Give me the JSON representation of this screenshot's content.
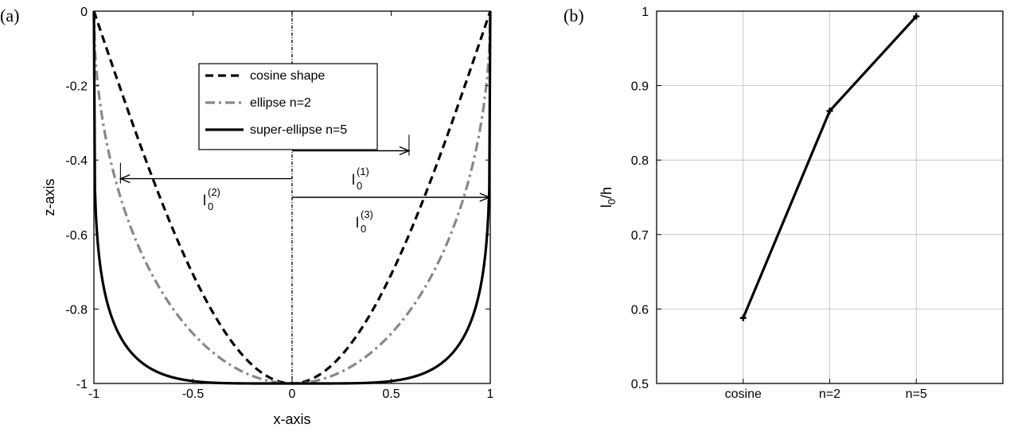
{
  "panels": {
    "a_label": "(a)",
    "b_label": "(b)"
  },
  "chart_data": [
    {
      "type": "line",
      "panel": "(a)",
      "xlabel": "x-axis",
      "ylabel": "z-axis",
      "xlim": [
        -1,
        1
      ],
      "ylim": [
        -1,
        0
      ],
      "xticks": [
        -1,
        -0.5,
        0,
        0.5,
        1
      ],
      "xtick_labels": [
        "-1",
        "-0.5",
        "0",
        "0.5",
        "1"
      ],
      "yticks": [
        -1,
        -0.8,
        -0.6,
        -0.4,
        -0.2,
        0
      ],
      "ytick_labels": [
        "-1",
        "-0.8",
        "-0.6",
        "-0.4",
        "-0.2",
        "0"
      ],
      "grid": false,
      "legend_position": "top-center",
      "series": [
        {
          "name": "cosine shape",
          "style": "dashed",
          "color": "#000000",
          "model": "cosine"
        },
        {
          "name": "ellipse n=2",
          "style": "dashdot",
          "color": "#888888",
          "model": "superellipse",
          "n": 2
        },
        {
          "name": "super-ellipse n=5",
          "style": "solid",
          "color": "#000000",
          "model": "superellipse",
          "n": 5
        }
      ],
      "annotations": [
        {
          "label": "l",
          "sup": "(1)",
          "sub": "0",
          "z": -0.375,
          "x_from": 0,
          "x_to": 0.59,
          "direction": "right"
        },
        {
          "label": "l",
          "sup": "(2)",
          "sub": "0",
          "z": -0.45,
          "x_from": 0,
          "x_to": -0.866,
          "direction": "left"
        },
        {
          "label": "l",
          "sup": "(3)",
          "sub": "0",
          "z": -0.5,
          "x_from": 0,
          "x_to": 0.995,
          "direction": "right"
        }
      ],
      "center_line_x": 0
    },
    {
      "type": "line",
      "panel": "(b)",
      "ylabel": "l",
      "ylabel_sub": "0",
      "ylabel_suffix": "/h",
      "categories": [
        "cosine",
        "n=2",
        "n=5"
      ],
      "values": [
        0.588,
        0.866,
        0.993
      ],
      "ylim": [
        0.5,
        1
      ],
      "yticks": [
        0.5,
        0.6,
        0.7,
        0.8,
        0.9,
        1
      ],
      "ytick_labels": [
        "0.5",
        "0.6",
        "0.7",
        "0.8",
        "0.9",
        "1"
      ],
      "grid": true,
      "marker": "plus",
      "color": "#000000"
    }
  ]
}
